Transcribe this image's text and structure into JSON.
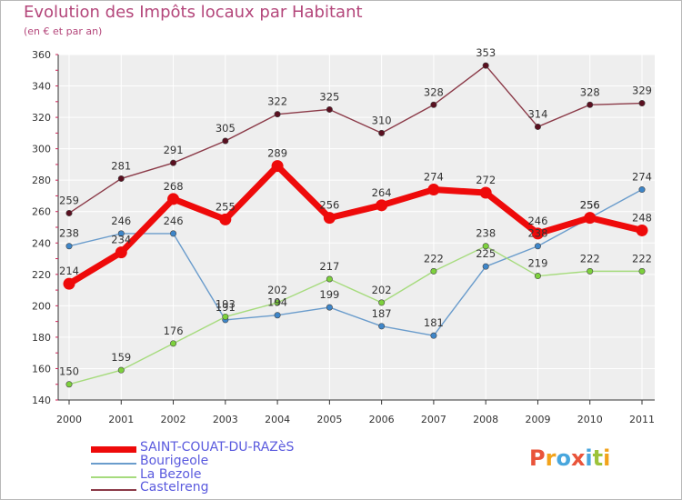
{
  "title": "Evolution des Impôts locaux par Habitant",
  "subtitle": "(en € et par an)",
  "brand": {
    "letters": [
      "P",
      "r",
      "o",
      "x",
      "i",
      "t",
      "i"
    ],
    "colors": [
      "#e9543a",
      "#f2a31b",
      "#48a6dd",
      "#e9543a",
      "#48a6dd",
      "#9cc33a",
      "#f2a31b"
    ]
  },
  "chart_data": {
    "type": "line",
    "title": "Evolution des Impôts locaux par Habitant",
    "subtitle": "(en € et par an)",
    "x": [
      "2000",
      "2001",
      "2002",
      "2003",
      "2004",
      "2005",
      "2006",
      "2007",
      "2008",
      "2009",
      "2010",
      "2011"
    ],
    "ylim": [
      140,
      360
    ],
    "yticks": [
      "140",
      "160",
      "180",
      "200",
      "220",
      "240",
      "260",
      "280",
      "300",
      "320",
      "340",
      "360"
    ],
    "grid": true,
    "series": [
      {
        "name": "Castelreng",
        "color": "#8b3a48",
        "marker": "#5a1020",
        "values": [
          259,
          281,
          291,
          305,
          322,
          325,
          310,
          328,
          353,
          314,
          328,
          329
        ],
        "labels": [
          "259",
          "281",
          "291",
          "305",
          "322",
          "325",
          "310",
          "328",
          "353",
          "314",
          "328",
          "329"
        ]
      },
      {
        "name": "Bourigeole",
        "color": "#6a9ccc",
        "marker": "#3e86c9",
        "values": [
          238,
          246,
          246,
          191,
          194,
          199,
          187,
          181,
          225,
          238,
          256,
          274
        ],
        "labels": [
          "238",
          "246",
          "246",
          "191",
          "194",
          "199",
          "187",
          "181",
          "225",
          "238",
          "256",
          "274"
        ]
      },
      {
        "name": "La Bezole",
        "color": "#a6db7d",
        "marker": "#7dd13d",
        "values": [
          150,
          159,
          176,
          193,
          202,
          217,
          202,
          222,
          238,
          219,
          222,
          222
        ],
        "labels": [
          "150",
          "159",
          "176",
          "193",
          "202",
          "217",
          "202",
          "222",
          "238",
          "219",
          "222",
          "222"
        ]
      },
      {
        "name": "SAINT-COUAT-DU-RAZèS",
        "color": "#ee0a0a",
        "marker": "#ee0a0a",
        "values": [
          214,
          234,
          268,
          255,
          289,
          256,
          264,
          274,
          272,
          246,
          256,
          248
        ],
        "labels": [
          "214",
          "234",
          "268",
          "255",
          "289",
          "256",
          "264",
          "274",
          "272",
          "246",
          "256",
          "248"
        ]
      }
    ],
    "legend": [
      "SAINT-COUAT-DU-RAZèS",
      "Bourigeole",
      "La Bezole",
      "Castelreng"
    ],
    "legend_position": "bottom-left"
  }
}
